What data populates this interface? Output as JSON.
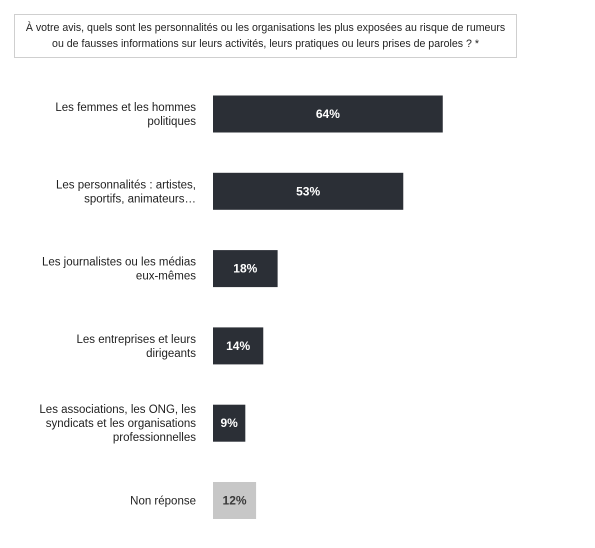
{
  "question": "À votre avis, quels sont les personnalités ou les organisations les plus exposées au risque de rumeurs ou de fausses informations sur leurs activités, leurs pratiques ou leurs prises de paroles ? *",
  "colors": {
    "bar": "#2b2f36",
    "bar_no_answer": "#c7c7c7",
    "label_on_bar": "#ffffff",
    "label_on_light_bar": "#3a3a3a"
  },
  "chart_data": {
    "type": "bar",
    "orientation": "horizontal",
    "categories": [
      [
        "Les femmes et les hommes",
        "politiques"
      ],
      [
        "Les personnalités : artistes,",
        "sportifs, animateurs…"
      ],
      [
        "Les journalistes ou les médias",
        "eux-mêmes"
      ],
      [
        "Les entreprises et leurs",
        "dirigeants"
      ],
      [
        "Les associations, les ONG, les",
        "syndicats et les organisations",
        "professionnelles"
      ],
      [
        "Non réponse"
      ]
    ],
    "values": [
      64,
      53,
      18,
      14,
      9,
      12
    ],
    "value_labels": [
      "64%",
      "53%",
      "18%",
      "14%",
      "9%",
      "12%"
    ],
    "unit": "%",
    "grid": false,
    "legend": "none"
  }
}
